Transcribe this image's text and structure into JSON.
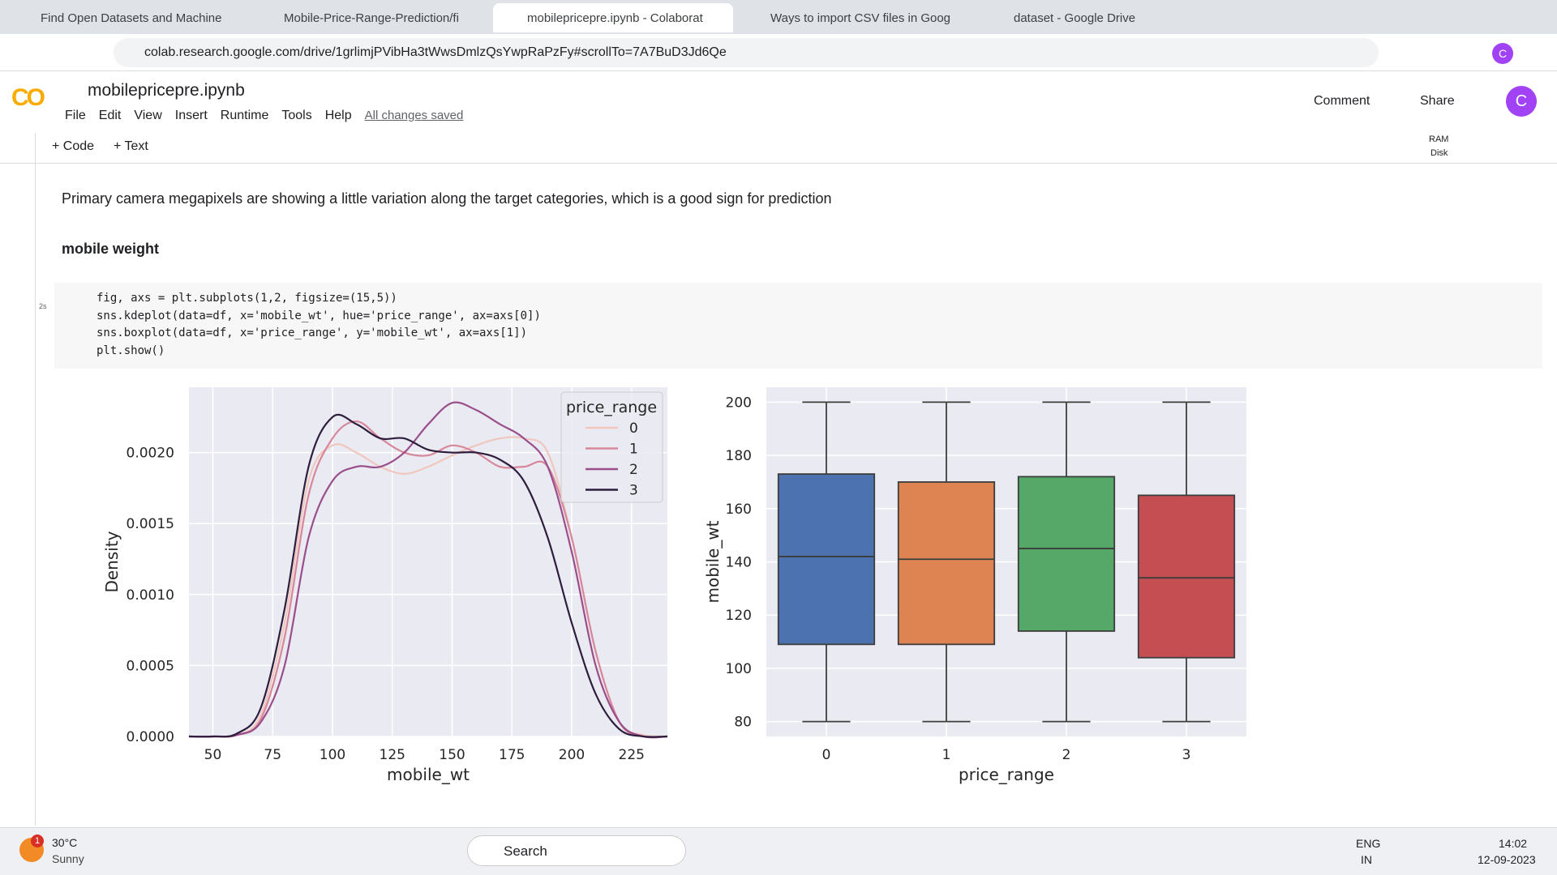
{
  "tabs": [
    "Find Open Datasets and Machine",
    "Mobile-Price-Range-Prediction/fi",
    "mobilepricepre.ipynb - Colaborat",
    "Ways to import CSV files in Goog",
    "dataset - Google Drive"
  ],
  "address": {
    "url": "colab.research.google.com/drive/1grlimjPVibHa3tWwsDmlzQsYwpRaPzFy#scrollTo=7A7BuD3Jd6Qe",
    "avatar": "C"
  },
  "header": {
    "logo": "CO",
    "title": "mobilepricepre.ipynb",
    "menu": [
      "File",
      "Edit",
      "View",
      "Insert",
      "Runtime",
      "Tools",
      "Help"
    ],
    "status": "All changes saved",
    "comment": "Comment",
    "share": "Share",
    "avatar": "C"
  },
  "toolbar": {
    "code": "+ Code",
    "text": "+ Text",
    "ram": "RAM",
    "disk": "Disk"
  },
  "cells": {
    "text": "Primary camera megapixels are showing a little variation along the target categories, which is a good sign for prediction",
    "heading": "mobile weight",
    "exec_time": "2s",
    "code": [
      "fig, axs = plt.subplots(1,2, figsize=(15,5))",
      "sns.kdeplot(data=df, x='mobile_wt', hue='price_range', ax=axs[0])",
      "sns.boxplot(data=df, x='price_range', y='mobile_wt', ax=axs[1])",
      "plt.show()"
    ]
  },
  "chart_data": [
    {
      "type": "line",
      "xlabel": "mobile_wt",
      "ylabel": "Density",
      "legend_title": "price_range",
      "legend": "upper right",
      "grid": true,
      "background": "#eaeaf2",
      "x": [
        40,
        50,
        60,
        70,
        80,
        90,
        100,
        110,
        120,
        130,
        140,
        150,
        160,
        170,
        180,
        190,
        200,
        210,
        220,
        230,
        240
      ],
      "xlim": [
        40,
        240
      ],
      "ylim": [
        0,
        0.00246
      ],
      "xticks": [
        50,
        75,
        100,
        125,
        150,
        175,
        200,
        225
      ],
      "yticks": [
        {
          "value": 0,
          "label": "0.0000"
        },
        {
          "value": 0.0005,
          "label": "0.0005"
        },
        {
          "value": 0.001,
          "label": "0.0010"
        },
        {
          "value": 0.0015,
          "label": "0.0015"
        },
        {
          "value": 0.002,
          "label": "0.0020"
        }
      ],
      "series": [
        {
          "name": "0",
          "color": "#f0c6bd",
          "values": [
            0,
            0,
            1e-05,
            0.00015,
            0.0008,
            0.0018,
            0.00205,
            0.002,
            0.0019,
            0.00185,
            0.0019,
            0.00198,
            0.00205,
            0.0021,
            0.0021,
            0.002,
            0.0014,
            0.0006,
            0.0001,
            1e-05,
            0
          ]
        },
        {
          "name": "1",
          "color": "#d8879b",
          "values": [
            0,
            0,
            1e-05,
            0.00012,
            0.0007,
            0.0017,
            0.0021,
            0.00222,
            0.0021,
            0.002,
            0.00198,
            0.00205,
            0.002,
            0.0019,
            0.0019,
            0.0019,
            0.0014,
            0.0006,
            0.0001,
            0,
            0
          ]
        },
        {
          "name": "2",
          "color": "#9a4e8a",
          "values": [
            0,
            0,
            1e-05,
            0.0001,
            0.0005,
            0.0014,
            0.0018,
            0.0019,
            0.0019,
            0.002,
            0.0022,
            0.00235,
            0.0023,
            0.0022,
            0.0021,
            0.0019,
            0.0013,
            0.0005,
            0.0001,
            0,
            0
          ]
        },
        {
          "name": "3",
          "color": "#2d1e3e",
          "values": [
            0,
            0,
            2e-05,
            0.0002,
            0.0009,
            0.0019,
            0.00225,
            0.0022,
            0.0021,
            0.0021,
            0.00202,
            0.002,
            0.002,
            0.00195,
            0.0018,
            0.0014,
            0.0008,
            0.0003,
            5e-05,
            0,
            0
          ]
        }
      ]
    },
    {
      "type": "box",
      "xlabel": "price_range",
      "ylabel": "mobile_wt",
      "grid": true,
      "background": "#eaeaf2",
      "categories": [
        "0",
        "1",
        "2",
        "3"
      ],
      "ylim": [
        74.4,
        205.6
      ],
      "yticks": [
        80,
        100,
        120,
        140,
        160,
        180,
        200
      ],
      "boxes": [
        {
          "color": "#4c72b0",
          "whislo": 80,
          "q1": 109,
          "med": 142,
          "q3": 173,
          "whishi": 200
        },
        {
          "color": "#dd8452",
          "whislo": 80,
          "q1": 109,
          "med": 141,
          "q3": 170,
          "whishi": 200
        },
        {
          "color": "#55a868",
          "whislo": 80,
          "q1": 114,
          "med": 145,
          "q3": 172,
          "whishi": 200
        },
        {
          "color": "#c44e52",
          "whislo": 80,
          "q1": 104,
          "med": 134,
          "q3": 165,
          "whishi": 200
        }
      ]
    }
  ],
  "taskbar": {
    "badge": "1",
    "temp": "30°C",
    "weather": "Sunny",
    "search": "Search",
    "lang": "ENG",
    "region": "IN",
    "time": "14:02",
    "date": "12-09-2023"
  }
}
